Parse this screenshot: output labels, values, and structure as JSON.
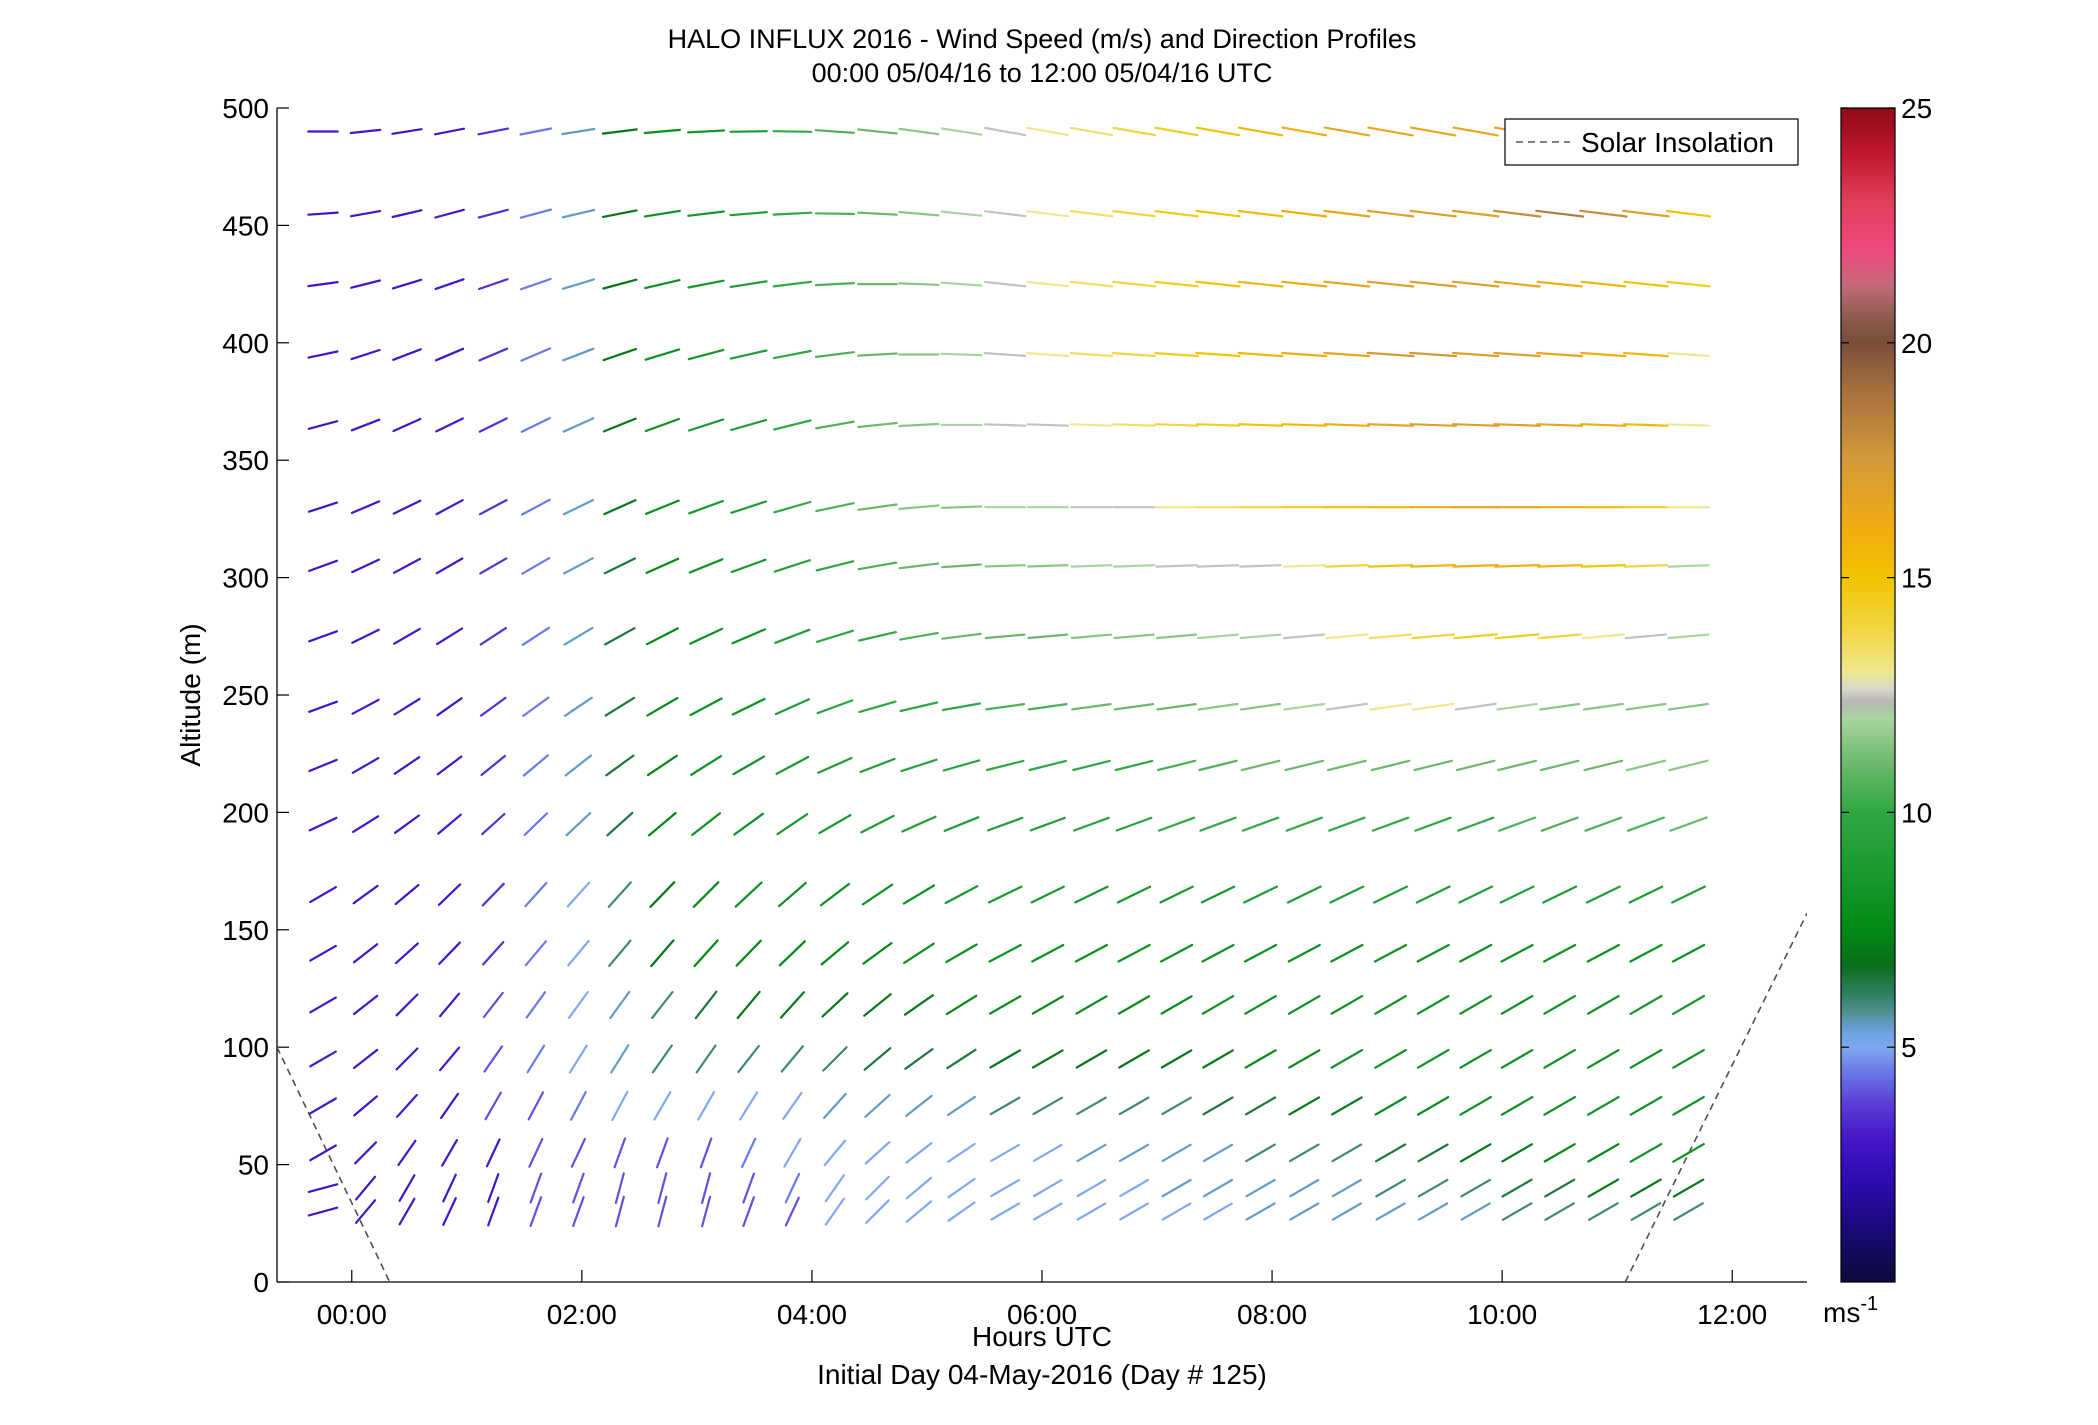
{
  "chart_data": {
    "type": "wind-barbs",
    "title": "HALO INFLUX 2016 - Wind Speed (m/s) and Direction Profiles",
    "subtitle": "00:00 05/04/16 to 12:00 05/04/16  UTC",
    "xlabel": "Hours UTC",
    "xlabel_sub": "Initial Day 04-May-2016 (Day # 125)",
    "ylabel": "Altitude (m)",
    "xlim": [
      -0.65,
      12.65
    ],
    "ylim": [
      0,
      500
    ],
    "x_ticks": [
      0,
      2,
      4,
      6,
      8,
      10,
      12
    ],
    "x_tick_labels": [
      "00:00",
      "02:00",
      "04:00",
      "06:00",
      "08:00",
      "10:00",
      "12:00"
    ],
    "y_ticks": [
      0,
      50,
      100,
      150,
      200,
      250,
      300,
      350,
      400,
      450,
      500
    ],
    "y_tick_labels": [
      "0",
      "50",
      "100",
      "150",
      "200",
      "250",
      "300",
      "350",
      "400",
      "450",
      "500"
    ],
    "legend": {
      "entries": [
        "Solar Insolation"
      ],
      "placement": "top-right",
      "line_style": "dashed",
      "color": "#808080"
    },
    "colorbar": {
      "range": [
        0,
        25
      ],
      "ticks": [
        5,
        10,
        15,
        20,
        25
      ],
      "tick_labels": [
        "5",
        "10",
        "15",
        "20",
        "25"
      ],
      "unit_label": "ms",
      "unit_exponent": "-1"
    },
    "solar_insolation": {
      "segments": [
        {
          "x": [
            -0.65,
            0.33
          ],
          "y": [
            100,
            0
          ]
        },
        {
          "x": [
            11.07,
            12.65
          ],
          "y": [
            0,
            157
          ]
        }
      ]
    },
    "wind_times_hours": [
      -0.25,
      0.12,
      0.48,
      0.85,
      1.23,
      1.6,
      1.97,
      2.33,
      2.7,
      3.08,
      3.45,
      3.83,
      4.2,
      4.57,
      4.93,
      5.3,
      5.68,
      6.05,
      6.43,
      6.8,
      7.17,
      7.53,
      7.9,
      8.28,
      8.65,
      9.03,
      9.4,
      9.77,
      10.13,
      10.5,
      10.88,
      11.25,
      11.62
    ],
    "wind_altitudes_m": [
      30,
      40,
      55,
      75,
      95,
      118,
      140,
      165,
      195,
      220,
      245,
      275,
      305,
      330,
      365,
      395,
      425,
      455,
      490
    ],
    "wind_speed_ms": [
      [
        3,
        3,
        3,
        3,
        3,
        4,
        4,
        4,
        4,
        4,
        4,
        4,
        5,
        5,
        5,
        5,
        5,
        5,
        5,
        5,
        5,
        5,
        5.5,
        5.5,
        5.5,
        5.5,
        5.5,
        5.5,
        6,
        6,
        6,
        6,
        6
      ],
      [
        3,
        3,
        3,
        3,
        3,
        4,
        4,
        4,
        4,
        4,
        4,
        4.5,
        5,
        5,
        5,
        5,
        5,
        5,
        5,
        5,
        5.5,
        5.5,
        5.5,
        5.5,
        5.5,
        6,
        6,
        6,
        6.5,
        6.5,
        7,
        7,
        7
      ],
      [
        3,
        3,
        3,
        3,
        3,
        4,
        4,
        4,
        4,
        4,
        4.5,
        5,
        5,
        5,
        5,
        5,
        5,
        5,
        5.5,
        5.5,
        5.5,
        5.5,
        6,
        6,
        6,
        6.5,
        6.5,
        7,
        7,
        7.5,
        7.5,
        8,
        8
      ],
      [
        3,
        3,
        3,
        3,
        4,
        4,
        4.5,
        5,
        5,
        5,
        5,
        5,
        5.5,
        5.5,
        5.5,
        5.5,
        6,
        6,
        6,
        6,
        6,
        6.5,
        6.5,
        7,
        7,
        7.5,
        7.5,
        8,
        8,
        8,
        8,
        8,
        8
      ],
      [
        3,
        3,
        3,
        3,
        4,
        4.5,
        5,
        5.5,
        6,
        6,
        6,
        6,
        6,
        6.5,
        6.5,
        6.5,
        7,
        7,
        7,
        7,
        7,
        7,
        7.5,
        7.5,
        8,
        8,
        8,
        8,
        8,
        8,
        8,
        8,
        8
      ],
      [
        3,
        3,
        3,
        3,
        4,
        4.5,
        5,
        5.5,
        6,
        6.5,
        7,
        7,
        7,
        7,
        7,
        7.5,
        7.5,
        7.5,
        7.5,
        7.5,
        7.5,
        8,
        8,
        8,
        8,
        8,
        8,
        8,
        8,
        8,
        8,
        8.5,
        8.5
      ],
      [
        3,
        3,
        3,
        3,
        3.5,
        4.5,
        5,
        6,
        7,
        7.5,
        7.5,
        7.5,
        7.5,
        7.5,
        8,
        8,
        8,
        8,
        8,
        8,
        8,
        8,
        8,
        8,
        8,
        8,
        8,
        8,
        8,
        8,
        8,
        8,
        8
      ],
      [
        3,
        3,
        3,
        3,
        3.5,
        4.5,
        5,
        6,
        7,
        7.5,
        8,
        8,
        8,
        8,
        8,
        8.5,
        8.5,
        8.5,
        8.5,
        8.5,
        8.5,
        8.5,
        9,
        9,
        9,
        9,
        9,
        9,
        9,
        9,
        9,
        9,
        9
      ],
      [
        3,
        3,
        3,
        3,
        3.5,
        4.5,
        5.5,
        6.5,
        7.5,
        8,
        8,
        8.5,
        8.5,
        9,
        9,
        9,
        9,
        9,
        9.5,
        9.5,
        10,
        10,
        10,
        10,
        10,
        10,
        10,
        10,
        10.5,
        10.5,
        10.5,
        10.5,
        11
      ],
      [
        3,
        3,
        3,
        3,
        3.5,
        4.5,
        5.5,
        6.5,
        7.5,
        8,
        8,
        8.5,
        9,
        9,
        9.5,
        9.5,
        10,
        10,
        10,
        10,
        10.5,
        10.5,
        11,
        11,
        11,
        11,
        11,
        11,
        11,
        11,
        11,
        11.5,
        11.5
      ],
      [
        3,
        3,
        3,
        3,
        3.5,
        4.5,
        5.5,
        6.5,
        7.5,
        8,
        8,
        9,
        9.5,
        10,
        10,
        10,
        10.5,
        10.5,
        11,
        11,
        11,
        11.5,
        11.5,
        12,
        12.5,
        13,
        13,
        12.5,
        12,
        11.5,
        11.5,
        11.5,
        11.5
      ],
      [
        3,
        3,
        3,
        3,
        3.5,
        4.5,
        5.5,
        6.5,
        7.5,
        8,
        8,
        9,
        10,
        10,
        10.5,
        11,
        11,
        11,
        11.5,
        11.5,
        11.5,
        12,
        12,
        12.5,
        13,
        13.5,
        14,
        14.5,
        14.5,
        14,
        13,
        12.5,
        12
      ],
      [
        3,
        3,
        3,
        3,
        3.5,
        4.5,
        5.5,
        6.5,
        7.5,
        8,
        8.5,
        9.5,
        10,
        10.5,
        11,
        11,
        11.5,
        11.5,
        12,
        12,
        12.5,
        12.5,
        12.5,
        13,
        14,
        15,
        15.5,
        16,
        16,
        15.5,
        15,
        14,
        12
      ],
      [
        3,
        3,
        3,
        3,
        3.5,
        4.5,
        5.5,
        7,
        8,
        8.5,
        9,
        10,
        10.5,
        11,
        11.5,
        11.5,
        12,
        12,
        12.5,
        12.5,
        13,
        13.5,
        14,
        14.5,
        15,
        15.5,
        16,
        16.5,
        16.5,
        16,
        15.5,
        14.5,
        13
      ],
      [
        3,
        3,
        3,
        3,
        3.5,
        4.5,
        5.5,
        7,
        8,
        8.5,
        9,
        10,
        10.5,
        11,
        11.5,
        12,
        12.5,
        12.5,
        13,
        13.5,
        14,
        14.5,
        15,
        15.5,
        16,
        16.5,
        17,
        17,
        17,
        16.5,
        16,
        15.5,
        13
      ],
      [
        3,
        3,
        3,
        3,
        3.5,
        4.5,
        5.5,
        7,
        8,
        8.5,
        9,
        10,
        10.5,
        11,
        11.5,
        12,
        12.5,
        13,
        13.5,
        14,
        14.5,
        15,
        15.5,
        16,
        16.5,
        17.5,
        17.5,
        17,
        17,
        16.5,
        16,
        15.5,
        13
      ],
      [
        3,
        3,
        3,
        3,
        3.5,
        4.5,
        5.5,
        7,
        8,
        8.5,
        9,
        10,
        10.5,
        11,
        11.5,
        12,
        12.5,
        13,
        13.5,
        14,
        14.5,
        15,
        15.5,
        16,
        16.5,
        17,
        17,
        17,
        16.5,
        16,
        15.5,
        15,
        14.5
      ],
      [
        3,
        3,
        3,
        3,
        3.5,
        4.5,
        5.5,
        7,
        8,
        8.5,
        9,
        10,
        10.5,
        11,
        11.5,
        12,
        12.5,
        13,
        13.5,
        14,
        14.5,
        15,
        15.5,
        16,
        16.5,
        17,
        17,
        17,
        18,
        18.5,
        18,
        17,
        15
      ],
      [
        3,
        3,
        3,
        3,
        3.5,
        4.5,
        5.5,
        7,
        8,
        8.5,
        9,
        10,
        10.5,
        11,
        11.5,
        12,
        12.5,
        13,
        13.5,
        14,
        14.5,
        15,
        15.5,
        16,
        16.5,
        16.5,
        16.5,
        16.5,
        16.5,
        16,
        16,
        15.5,
        15
      ]
    ],
    "wind_direction_deg": [
      [
        255,
        220,
        210,
        205,
        200,
        200,
        200,
        195,
        195,
        195,
        200,
        205,
        215,
        225,
        230,
        235,
        240,
        240,
        240,
        240,
        240,
        240,
        240,
        240,
        240,
        240,
        240,
        240,
        240,
        240,
        240,
        240,
        240
      ],
      [
        255,
        220,
        210,
        205,
        200,
        200,
        200,
        195,
        195,
        195,
        200,
        205,
        215,
        225,
        230,
        235,
        240,
        240,
        240,
        240,
        240,
        240,
        240,
        240,
        240,
        240,
        240,
        240,
        240,
        240,
        240,
        240,
        240
      ],
      [
        240,
        225,
        215,
        210,
        205,
        205,
        205,
        200,
        200,
        200,
        205,
        210,
        220,
        228,
        232,
        236,
        240,
        240,
        240,
        240,
        240,
        240,
        240,
        240,
        240,
        240,
        240,
        240,
        240,
        240,
        240,
        240,
        240
      ],
      [
        240,
        230,
        222,
        215,
        210,
        208,
        208,
        208,
        210,
        210,
        212,
        215,
        222,
        228,
        232,
        236,
        240,
        240,
        240,
        240,
        240,
        240,
        240,
        240,
        240,
        240,
        240,
        240,
        240,
        240,
        240,
        240,
        240
      ],
      [
        240,
        232,
        225,
        220,
        215,
        212,
        212,
        212,
        215,
        215,
        218,
        220,
        225,
        230,
        234,
        237,
        240,
        240,
        240,
        240,
        240,
        240,
        240,
        240,
        240,
        240,
        240,
        240,
        240,
        240,
        240,
        240,
        240
      ],
      [
        240,
        232,
        225,
        220,
        218,
        216,
        216,
        216,
        218,
        218,
        220,
        222,
        227,
        231,
        235,
        238,
        240,
        240,
        240,
        240,
        240,
        240,
        240,
        240,
        240,
        240,
        240,
        240,
        240,
        240,
        240,
        240,
        240
      ],
      [
        240,
        232,
        228,
        224,
        222,
        220,
        220,
        220,
        221,
        222,
        224,
        226,
        230,
        234,
        237,
        240,
        242,
        242,
        242,
        242,
        242,
        242,
        242,
        242,
        242,
        242,
        242,
        242,
        242,
        242,
        242,
        242,
        242
      ],
      [
        240,
        234,
        230,
        226,
        224,
        222,
        222,
        222,
        224,
        225,
        227,
        229,
        233,
        236,
        239,
        242,
        244,
        244,
        244,
        244,
        244,
        244,
        244,
        244,
        244,
        244,
        244,
        244,
        244,
        244,
        244,
        244,
        244
      ],
      [
        245,
        238,
        234,
        230,
        228,
        226,
        227,
        228,
        230,
        232,
        234,
        236,
        240,
        243,
        246,
        248,
        250,
        250,
        250,
        250,
        250,
        250,
        250,
        250,
        250,
        250,
        250,
        250,
        250,
        250,
        250,
        250,
        250
      ],
      [
        248,
        240,
        236,
        233,
        231,
        230,
        232,
        234,
        236,
        238,
        240,
        242,
        246,
        249,
        252,
        254,
        256,
        256,
        256,
        256,
        256,
        256,
        256,
        256,
        256,
        256,
        256,
        256,
        256,
        256,
        256,
        256,
        256
      ],
      [
        250,
        242,
        238,
        235,
        234,
        234,
        236,
        238,
        240,
        242,
        244,
        246,
        250,
        254,
        257,
        260,
        262,
        262,
        262,
        262,
        262,
        262,
        262,
        262,
        262,
        262,
        262,
        262,
        262,
        262,
        262,
        262,
        262
      ],
      [
        250,
        244,
        240,
        238,
        237,
        237,
        239,
        241,
        243,
        245,
        247,
        249,
        253,
        257,
        260,
        263,
        265,
        265,
        265,
        265,
        265,
        265,
        265,
        265,
        265,
        265,
        265,
        265,
        265,
        265,
        265,
        265,
        265
      ],
      [
        250,
        245,
        242,
        240,
        240,
        240,
        242,
        244,
        246,
        248,
        250,
        252,
        256,
        260,
        263,
        266,
        268,
        268,
        268,
        268,
        268,
        268,
        268,
        268,
        268,
        268,
        268,
        268,
        268,
        268,
        268,
        268,
        268
      ],
      [
        252,
        247,
        244,
        242,
        242,
        242,
        244,
        246,
        248,
        250,
        252,
        254,
        258,
        262,
        265,
        268,
        270,
        270,
        270,
        270,
        270,
        270,
        270,
        270,
        270,
        270,
        270,
        270,
        270,
        270,
        270,
        270,
        270
      ],
      [
        255,
        249,
        246,
        244,
        244,
        244,
        246,
        248,
        250,
        252,
        254,
        256,
        260,
        264,
        267,
        270,
        272,
        272,
        272,
        272,
        272,
        272,
        272,
        272,
        272,
        272,
        272,
        272,
        272,
        272,
        272,
        272,
        272
      ],
      [
        258,
        252,
        249,
        247,
        247,
        247,
        249,
        251,
        253,
        255,
        257,
        259,
        263,
        267,
        270,
        272,
        274,
        274,
        274,
        274,
        274,
        274,
        274,
        274,
        274,
        274,
        274,
        274,
        274,
        274,
        274,
        274,
        274
      ],
      [
        262,
        256,
        253,
        251,
        251,
        251,
        253,
        255,
        257,
        259,
        261,
        263,
        267,
        270,
        272,
        274,
        276,
        276,
        276,
        276,
        276,
        276,
        276,
        276,
        276,
        276,
        276,
        276,
        276,
        276,
        276,
        276,
        276
      ],
      [
        266,
        260,
        257,
        255,
        255,
        255,
        257,
        259,
        261,
        263,
        265,
        267,
        271,
        273,
        275,
        276,
        277,
        277,
        277,
        277,
        277,
        277,
        277,
        277,
        277,
        277,
        277,
        277,
        277,
        277,
        277,
        277,
        277
      ],
      [
        270,
        264,
        261,
        259,
        259,
        259,
        261,
        263,
        265,
        267,
        269,
        271,
        274,
        276,
        278,
        279,
        280,
        280,
        280,
        280,
        280,
        280,
        280,
        280,
        280,
        280,
        280,
        280,
        280,
        280,
        280,
        280,
        280
      ]
    ]
  }
}
